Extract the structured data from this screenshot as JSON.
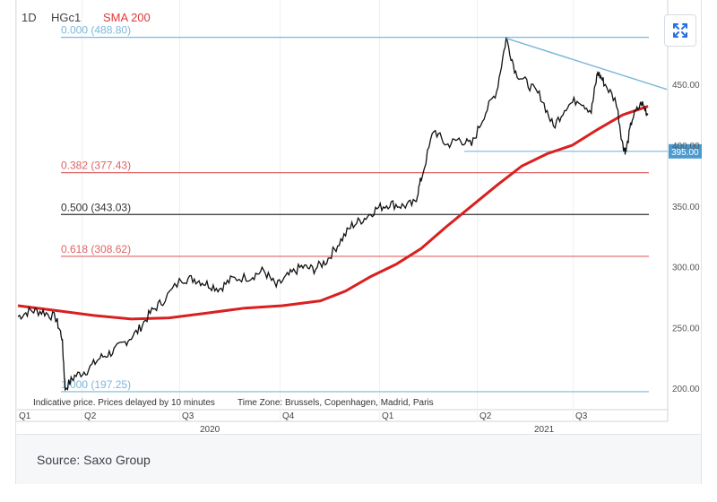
{
  "header": {
    "interval": "1D",
    "symbol": "HGc1",
    "indicator": "SMA 200",
    "indicator_color": "#e03a3a"
  },
  "toolbar": {
    "expand_icon": "expand-icon"
  },
  "footer": {
    "source": "Source: Saxo Group"
  },
  "chart_data": {
    "type": "candlestick",
    "y_axis": {
      "ticks": [
        "200.00",
        "250.00",
        "300.00",
        "350.00",
        "400.00",
        "450.00"
      ],
      "ylim": [
        195,
        490
      ]
    },
    "x_axis": {
      "quarter_labels": [
        "Q1",
        "Q2",
        "Q3",
        "Q4",
        "Q1",
        "Q2",
        "Q3"
      ],
      "year_labels": [
        "2020",
        "2021"
      ]
    },
    "fib_levels": [
      {
        "label": "0.000 (488.80)",
        "value": 488.8,
        "color": "#7bb8dc"
      },
      {
        "label": "0.382 (377.43)",
        "value": 377.43,
        "color": "#e06464"
      },
      {
        "label": "0.500 (343.03)",
        "value": 343.03,
        "color": "#333333"
      },
      {
        "label": "0.618 (308.62)",
        "value": 308.62,
        "color": "#e06464"
      },
      {
        "label": "1.000 (197.25)",
        "value": 197.25,
        "color": "#7bb8dc"
      }
    ],
    "support_line": {
      "value": 395.0,
      "label": "395.00"
    },
    "price_path": [
      [
        0.0,
        259
      ],
      [
        0.02,
        264
      ],
      [
        0.04,
        263
      ],
      [
        0.06,
        258
      ],
      [
        0.07,
        242
      ],
      [
        0.075,
        200
      ],
      [
        0.09,
        210
      ],
      [
        0.11,
        215
      ],
      [
        0.13,
        225
      ],
      [
        0.15,
        230
      ],
      [
        0.17,
        238
      ],
      [
        0.19,
        247
      ],
      [
        0.21,
        262
      ],
      [
        0.23,
        272
      ],
      [
        0.26,
        290
      ],
      [
        0.28,
        290
      ],
      [
        0.3,
        286
      ],
      [
        0.32,
        282
      ],
      [
        0.34,
        290
      ],
      [
        0.37,
        292
      ],
      [
        0.39,
        297
      ],
      [
        0.41,
        284
      ],
      [
        0.43,
        293
      ],
      [
        0.45,
        300
      ],
      [
        0.47,
        298
      ],
      [
        0.49,
        305
      ],
      [
        0.51,
        320
      ],
      [
        0.53,
        334
      ],
      [
        0.55,
        340
      ],
      [
        0.57,
        348
      ],
      [
        0.59,
        352
      ],
      [
        0.61,
        350
      ],
      [
        0.63,
        352
      ],
      [
        0.64,
        372
      ],
      [
        0.66,
        413
      ],
      [
        0.68,
        400
      ],
      [
        0.7,
        405
      ],
      [
        0.72,
        400
      ],
      [
        0.74,
        425
      ],
      [
        0.76,
        445
      ],
      [
        0.775,
        488
      ],
      [
        0.79,
        460
      ],
      [
        0.81,
        450
      ],
      [
        0.83,
        440
      ],
      [
        0.85,
        415
      ],
      [
        0.87,
        432
      ],
      [
        0.89,
        438
      ],
      [
        0.91,
        428
      ],
      [
        0.92,
        460
      ],
      [
        0.93,
        452
      ],
      [
        0.95,
        435
      ],
      [
        0.96,
        400
      ],
      [
        0.965,
        395
      ],
      [
        0.975,
        422
      ],
      [
        0.99,
        435
      ],
      [
        1.0,
        425
      ]
    ],
    "sma200_path": [
      [
        0.0,
        268
      ],
      [
        0.06,
        264
      ],
      [
        0.12,
        260
      ],
      [
        0.18,
        257
      ],
      [
        0.24,
        258
      ],
      [
        0.3,
        262
      ],
      [
        0.36,
        266
      ],
      [
        0.42,
        268
      ],
      [
        0.48,
        272
      ],
      [
        0.52,
        280
      ],
      [
        0.56,
        292
      ],
      [
        0.6,
        302
      ],
      [
        0.64,
        315
      ],
      [
        0.68,
        333
      ],
      [
        0.72,
        350
      ],
      [
        0.76,
        367
      ],
      [
        0.8,
        383
      ],
      [
        0.84,
        393
      ],
      [
        0.88,
        400
      ],
      [
        0.92,
        413
      ],
      [
        0.96,
        425
      ],
      [
        1.0,
        432
      ]
    ],
    "trendline": [
      [
        0.775,
        488
      ],
      [
        1.03,
        446
      ]
    ],
    "legend": "none"
  },
  "notice": "Indicative price. Prices delayed by 10 minutes",
  "timezone": "Time Zone: Brussels, Copenhagen, Madrid, Paris"
}
